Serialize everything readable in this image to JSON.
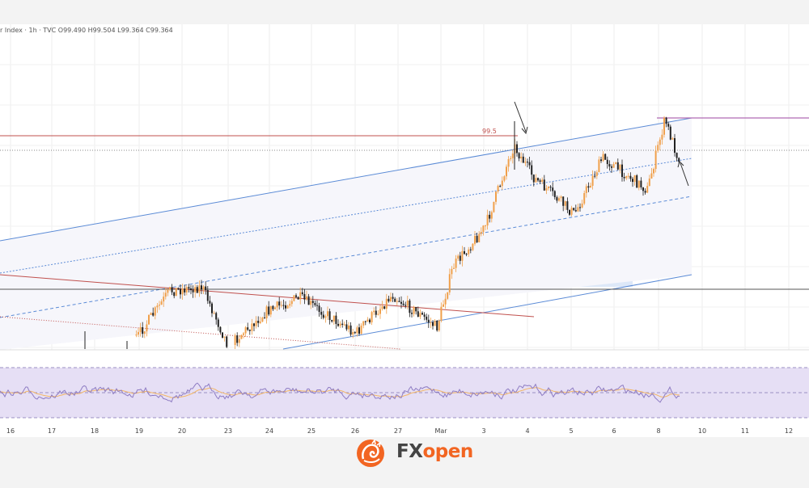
{
  "header": {
    "symbol_fragment": "r Index · 1h · TVC",
    "ohlc": "O99.490  H99.504  L99.364  C99.364"
  },
  "level_label": "99.5",
  "brand": {
    "fx": "FX",
    "open": "open"
  },
  "colors": {
    "up": "#f0a04b",
    "down": "#222222",
    "channel": "#5b8bd6",
    "resistance": "#b06ab3",
    "level": "#c0504d",
    "rsi": "#8e7cc3",
    "rsi_ma": "#f3b664",
    "rsi_band": "#e6dff5",
    "zone": "#dde8f8"
  },
  "chart_data": {
    "type": "candlestick",
    "x_tick_labels": [
      "16",
      "17",
      "18",
      "19",
      "20",
      "23",
      "24",
      "25",
      "26",
      "27",
      "Mar",
      "3",
      "4",
      "5",
      "6",
      "8",
      "10",
      "11",
      "12"
    ],
    "resistance_level": 99.5,
    "last_close": 99.364,
    "annotations": [
      "down-arrow near March 3 high",
      "up-arrow near March 8 pullback"
    ],
    "indicators": [
      "RSI with moving average"
    ],
    "grid": true
  }
}
